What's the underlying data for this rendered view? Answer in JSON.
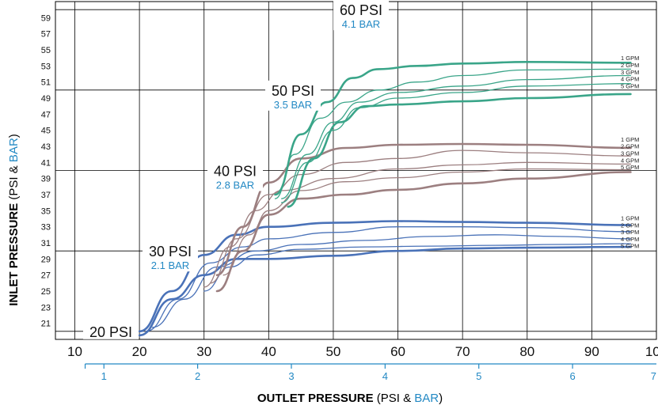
{
  "chart_data": {
    "type": "line",
    "xlabel_bold": "OUTLET PRESSURE",
    "xlabel_open": " (PSI & ",
    "xlabel_bar": "BAR",
    "xlabel_close": ")",
    "ylabel_bold": "INLET PRESSURE",
    "ylabel_open": " (PSI & ",
    "ylabel_bar": "BAR",
    "ylabel_close": ")",
    "xlim": [
      7,
      100
    ],
    "ylim": [
      19,
      61
    ],
    "grid": true,
    "x_ticks_psi": [
      "10",
      "20",
      "30",
      "40",
      "50",
      "60",
      "70",
      "80",
      "90",
      "100"
    ],
    "x_ticks_bar": [
      "1",
      "2",
      "3",
      "4",
      "5",
      "6",
      "7"
    ],
    "y_ticks": [
      "21",
      "23",
      "25",
      "27",
      "29",
      "31",
      "33",
      "35",
      "37",
      "39",
      "41",
      "43",
      "45",
      "47",
      "49",
      "51",
      "53",
      "55",
      "57",
      "59"
    ],
    "set_labels": [
      {
        "psi": "20 PSI",
        "bar": ""
      },
      {
        "psi": "30 PSI",
        "bar": "2.1 BAR"
      },
      {
        "psi": "40 PSI",
        "bar": "2.8 BAR"
      },
      {
        "psi": "50 PSI",
        "bar": "3.5 BAR"
      },
      {
        "psi": "60 PSI",
        "bar": "4.1 BAR"
      }
    ],
    "flow_labels": [
      "1 GPM",
      "2 GPM",
      "3 GPM",
      "4 GPM",
      "5 GPM"
    ],
    "colors": {
      "psi30": "#4a72b8",
      "psi40": "#9c7f80",
      "psi50": "#3aa589",
      "bar_text": "#2389c4",
      "grid": "#000000"
    },
    "groups": [
      {
        "set_point": "30 PSI",
        "series": [
          {
            "name": "1 GPM",
            "points": [
              [
                20,
                20
              ],
              [
                25,
                25
              ],
              [
                30,
                29.5
              ],
              [
                35,
                32
              ],
              [
                40,
                33
              ],
              [
                50,
                33.5
              ],
              [
                60,
                33.7
              ],
              [
                70,
                33.6
              ],
              [
                80,
                33.5
              ],
              [
                96,
                33.2
              ]
            ]
          },
          {
            "name": "2 GPM",
            "points": [
              [
                21,
                20
              ],
              [
                26,
                24
              ],
              [
                31,
                28.5
              ],
              [
                36,
                30.5
              ],
              [
                40,
                31.5
              ],
              [
                50,
                32.3
              ],
              [
                60,
                33
              ],
              [
                70,
                33
              ],
              [
                80,
                32.9
              ],
              [
                96,
                32.4
              ]
            ]
          },
          {
            "name": "3 GPM",
            "points": [
              [
                22,
                20.5
              ],
              [
                27,
                24
              ],
              [
                32,
                28
              ],
              [
                38,
                30
              ],
              [
                45,
                30.8
              ],
              [
                55,
                31.3
              ],
              [
                65,
                31.8
              ],
              [
                75,
                32
              ],
              [
                85,
                31.8
              ],
              [
                96,
                31.5
              ]
            ]
          },
          {
            "name": "4 GPM",
            "points": [
              [
                30,
                25
              ],
              [
                34,
                28
              ],
              [
                38,
                29.5
              ],
              [
                45,
                30.2
              ],
              [
                55,
                30.5
              ],
              [
                65,
                30.6
              ],
              [
                75,
                30.7
              ],
              [
                85,
                30.8
              ],
              [
                96,
                30.9
              ]
            ]
          },
          {
            "name": "5 GPM",
            "points": [
              [
                20,
                19.5
              ],
              [
                25,
                24
              ],
              [
                30,
                27
              ],
              [
                35,
                29
              ],
              [
                40,
                29
              ],
              [
                50,
                29.4
              ],
              [
                60,
                30
              ],
              [
                70,
                30.3
              ],
              [
                80,
                30.4
              ],
              [
                96,
                30.5
              ]
            ]
          }
        ]
      },
      {
        "set_point": "40 PSI",
        "series": [
          {
            "name": "1 GPM",
            "points": [
              [
                32,
                27
              ],
              [
                36,
                33
              ],
              [
                40,
                38.5
              ],
              [
                45,
                41.5
              ],
              [
                52,
                42.8
              ],
              [
                60,
                43.2
              ],
              [
                70,
                43.3
              ],
              [
                80,
                43.2
              ],
              [
                96,
                42.8
              ]
            ]
          },
          {
            "name": "2 GPM",
            "points": [
              [
                31,
                26
              ],
              [
                35,
                31.5
              ],
              [
                40,
                37
              ],
              [
                45,
                39.5
              ],
              [
                52,
                41
              ],
              [
                60,
                41.5
              ],
              [
                70,
                42.5
              ],
              [
                80,
                42.2
              ],
              [
                96,
                41.8
              ]
            ]
          },
          {
            "name": "3 GPM",
            "points": [
              [
                30,
                25.5
              ],
              [
                34,
                30.5
              ],
              [
                38,
                35
              ],
              [
                42,
                37.5
              ],
              [
                50,
                39
              ],
              [
                60,
                40.2
              ],
              [
                70,
                40.7
              ],
              [
                80,
                41
              ],
              [
                96,
                40.8
              ]
            ]
          },
          {
            "name": "4 GPM",
            "points": [
              [
                33,
                27
              ],
              [
                37,
                32
              ],
              [
                40,
                35
              ],
              [
                45,
                37.5
              ],
              [
                52,
                38.6
              ],
              [
                60,
                39.1
              ],
              [
                70,
                39.8
              ],
              [
                80,
                40.2
              ],
              [
                96,
                40.1
              ]
            ]
          },
          {
            "name": "5 GPM",
            "points": [
              [
                32,
                25
              ],
              [
                36,
                30
              ],
              [
                40,
                34.5
              ],
              [
                45,
                36.5
              ],
              [
                52,
                37
              ],
              [
                60,
                37.6
              ],
              [
                70,
                38.4
              ],
              [
                80,
                39
              ],
              [
                96,
                39.8
              ]
            ]
          }
        ]
      },
      {
        "set_point": "50 PSI",
        "series": [
          {
            "name": "1 GPM",
            "points": [
              [
                41,
                37
              ],
              [
                45,
                44.5
              ],
              [
                49,
                48.5
              ],
              [
                53,
                51.5
              ],
              [
                57,
                52.6
              ],
              [
                63,
                53
              ],
              [
                70,
                53.3
              ],
              [
                80,
                53.5
              ],
              [
                96,
                53.4
              ]
            ]
          },
          {
            "name": "2 GPM",
            "points": [
              [
                41,
                36.5
              ],
              [
                44,
                42
              ],
              [
                48,
                46.5
              ],
              [
                52,
                48.5
              ],
              [
                57,
                50
              ],
              [
                63,
                51
              ],
              [
                70,
                51.8
              ],
              [
                80,
                52.5
              ],
              [
                96,
                52.6
              ]
            ]
          },
          {
            "name": "3 GPM",
            "points": [
              [
                42,
                36.5
              ],
              [
                46,
                42
              ],
              [
                50,
                46
              ],
              [
                54,
                48.5
              ],
              [
                60,
                49.7
              ],
              [
                70,
                50.5
              ],
              [
                80,
                51.3
              ],
              [
                96,
                51.8
              ]
            ]
          },
          {
            "name": "4 GPM",
            "points": [
              [
                42,
                36
              ],
              [
                46,
                41
              ],
              [
                50,
                45
              ],
              [
                54,
                47.8
              ],
              [
                60,
                49
              ],
              [
                70,
                49.7
              ],
              [
                80,
                50.5
              ],
              [
                96,
                50.8
              ]
            ]
          },
          {
            "name": "5 GPM",
            "points": [
              [
                43,
                35.5
              ],
              [
                47,
                41.5
              ],
              [
                51,
                46
              ],
              [
                55,
                48
              ],
              [
                60,
                48.2
              ],
              [
                70,
                48.6
              ],
              [
                80,
                49
              ],
              [
                96,
                49.5
              ]
            ]
          }
        ]
      }
    ]
  }
}
